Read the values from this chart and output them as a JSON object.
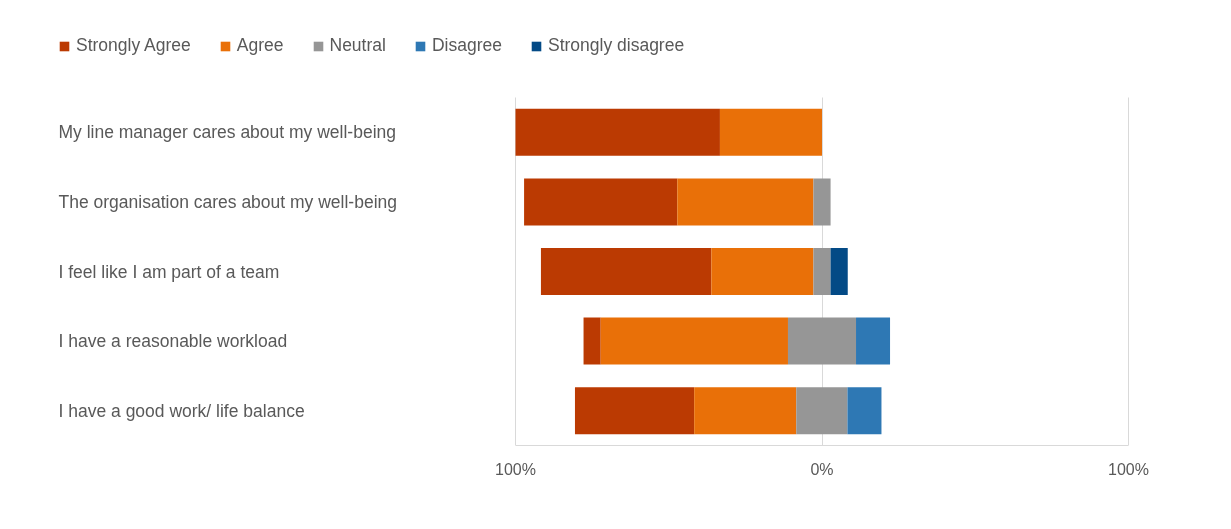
{
  "chart_data": {
    "type": "bar",
    "orientation": "horizontal",
    "categories": [
      "My line manager cares about my well-being",
      "The organisation cares about my well-being",
      "I feel like I am part of a team",
      "I have a reasonable workload",
      "I have a good work/ life balance"
    ],
    "series": [
      {
        "name": "Strongly Agree",
        "color": "#bb3a02",
        "base": [
          -100,
          -97.2,
          -91.7,
          -77.8,
          -80.6
        ],
        "values": [
          66.7,
          50,
          55.6,
          5.6,
          38.9
        ]
      },
      {
        "name": "Agree",
        "color": "#e97008",
        "base": [
          -33.3,
          -47.2,
          -36.1,
          -72.2,
          -41.7
        ],
        "values": [
          33.3,
          44.4,
          33.3,
          61.1,
          33.3
        ]
      },
      {
        "name": "Neutral",
        "color": "#969696",
        "base": [
          null,
          -2.8,
          -2.8,
          -11.1,
          -8.4
        ],
        "values": [
          null,
          5.6,
          5.6,
          22.2,
          16.7
        ]
      },
      {
        "name": "Disagree",
        "color": "#2e78b4",
        "base": [
          null,
          null,
          null,
          11.1,
          8.3
        ],
        "values": [
          null,
          null,
          null,
          11.1,
          11.1
        ]
      },
      {
        "name": "Strongly disagree",
        "color": "#034a86",
        "base": [
          null,
          null,
          2.8,
          null,
          null
        ],
        "values": [
          null,
          null,
          5.6,
          null,
          null
        ]
      }
    ],
    "xlim": [
      -100,
      100
    ],
    "xticks": [
      {
        "value": -100,
        "label": "100%"
      },
      {
        "value": 0,
        "label": "0%"
      },
      {
        "value": 100,
        "label": "100%"
      }
    ],
    "grid": "x",
    "legend": "top left"
  }
}
